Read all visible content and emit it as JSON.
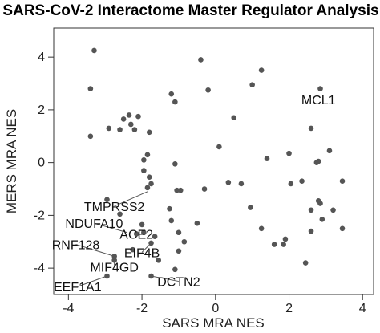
{
  "chart_data": {
    "type": "scatter",
    "title": "SARS-CoV-2 Interactome Master Regulator Analysis",
    "xlabel": "SARS MRA NES",
    "ylabel": "MERS MRA NES",
    "xlim": [
      -4.4,
      4.3
    ],
    "ylim": [
      -5.0,
      5.1
    ],
    "xticks": [
      -4,
      -2,
      0,
      2,
      4
    ],
    "yticks": [
      -4,
      -2,
      0,
      2,
      4
    ],
    "xtick_labels": [
      "-4",
      "-2",
      "0",
      "2",
      "4"
    ],
    "ytick_labels": [
      "-4",
      "-2",
      "0",
      "2",
      "4"
    ],
    "point_color": "#555555",
    "line_color": "#555555",
    "points": [
      {
        "x": -3.3,
        "y": 4.25
      },
      {
        "x": -3.4,
        "y": 2.8
      },
      {
        "x": -3.4,
        "y": 1.0
      },
      {
        "x": -2.9,
        "y": 1.3
      },
      {
        "x": -2.6,
        "y": 1.25
      },
      {
        "x": -2.5,
        "y": 1.65
      },
      {
        "x": -2.35,
        "y": 1.8
      },
      {
        "x": -2.3,
        "y": 1.45
      },
      {
        "x": -2.1,
        "y": 1.75
      },
      {
        "x": -2.2,
        "y": 1.25
      },
      {
        "x": -1.8,
        "y": 1.15
      },
      {
        "x": -1.2,
        "y": 2.6
      },
      {
        "x": -1.1,
        "y": 2.3
      },
      {
        "x": -0.4,
        "y": 3.9
      },
      {
        "x": -0.2,
        "y": 2.75
      },
      {
        "x": 0.1,
        "y": 0.6
      },
      {
        "x": 0.5,
        "y": 1.7
      },
      {
        "x": 1.0,
        "y": 2.95
      },
      {
        "x": 1.25,
        "y": 3.5
      },
      {
        "x": 2.85,
        "y": 2.8
      },
      {
        "x": 2.6,
        "y": 1.3
      },
      {
        "x": 2.8,
        "y": 0.05
      },
      {
        "x": 3.1,
        "y": 0.45
      },
      {
        "x": 2.75,
        "y": 0.0
      },
      {
        "x": 2.0,
        "y": 0.35
      },
      {
        "x": 1.4,
        "y": 0.15
      },
      {
        "x": 3.45,
        "y": -0.7
      },
      {
        "x": 3.2,
        "y": -1.8
      },
      {
        "x": 3.45,
        "y": -2.5
      },
      {
        "x": 2.8,
        "y": -1.45
      },
      {
        "x": 2.85,
        "y": -1.55
      },
      {
        "x": 2.9,
        "y": -2.15
      },
      {
        "x": 2.6,
        "y": -1.8
      },
      {
        "x": 2.6,
        "y": -2.6
      },
      {
        "x": 2.35,
        "y": -0.7
      },
      {
        "x": 2.05,
        "y": -0.8
      },
      {
        "x": 1.9,
        "y": -2.9
      },
      {
        "x": 1.85,
        "y": -3.1
      },
      {
        "x": 1.6,
        "y": -3.1
      },
      {
        "x": 1.25,
        "y": -2.5
      },
      {
        "x": 0.95,
        "y": -1.7
      },
      {
        "x": 0.7,
        "y": -0.8
      },
      {
        "x": 0.35,
        "y": -0.75
      },
      {
        "x": 2.45,
        "y": -3.8
      },
      {
        "x": -0.3,
        "y": -1.0
      },
      {
        "x": -0.5,
        "y": -2.3
      },
      {
        "x": -0.95,
        "y": -1.05
      },
      {
        "x": -1.05,
        "y": -1.05
      },
      {
        "x": -1.2,
        "y": -2.2
      },
      {
        "x": -1.0,
        "y": -2.65
      },
      {
        "x": -0.85,
        "y": -3.0
      },
      {
        "x": -1.0,
        "y": -3.35
      },
      {
        "x": -1.1,
        "y": -4.05
      },
      {
        "x": -1.65,
        "y": -2.8
      },
      {
        "x": -1.55,
        "y": -3.7
      },
      {
        "x": -1.75,
        "y": -4.3
      },
      {
        "x": -1.85,
        "y": -0.95
      },
      {
        "x": -1.95,
        "y": -0.3
      },
      {
        "x": -1.95,
        "y": 0.1
      },
      {
        "x": -1.85,
        "y": 0.3
      },
      {
        "x": -1.8,
        "y": -0.55
      },
      {
        "x": -1.75,
        "y": -0.8
      },
      {
        "x": -1.1,
        "y": -0.05
      },
      {
        "x": -1.25,
        "y": -1.75
      },
      {
        "x": -2.0,
        "y": -2.35
      },
      {
        "x": -1.95,
        "y": -2.65
      },
      {
        "x": -2.15,
        "y": -2.7
      },
      {
        "x": -1.75,
        "y": -3.05
      },
      {
        "x": -2.25,
        "y": -3.3
      },
      {
        "x": -2.75,
        "y": -3.55
      },
      {
        "x": -2.75,
        "y": -3.7
      },
      {
        "x": -2.95,
        "y": -4.3
      },
      {
        "x": -2.95,
        "y": -1.4
      },
      {
        "x": -2.6,
        "y": -1.95
      }
    ],
    "annotations": [
      {
        "label": "MCL1",
        "lx": 2.8,
        "ly": 2.4,
        "anchor": "middle",
        "has_line": false,
        "px": 2.85,
        "py": 2.8
      },
      {
        "label": "TMPRSS2",
        "lx": -2.75,
        "ly": -1.65,
        "anchor": "middle",
        "has_line": true,
        "px": -1.85,
        "py": -1.1
      },
      {
        "label": "NDUFA10",
        "lx": -3.3,
        "ly": -2.3,
        "anchor": "middle",
        "has_line": true,
        "px": -2.4,
        "py": -2.65
      },
      {
        "label": "ACE2",
        "lx": -2.15,
        "ly": -2.7,
        "anchor": "middle",
        "has_line": false,
        "px": -2.15,
        "py": -2.7
      },
      {
        "label": "RNF128",
        "lx": -3.8,
        "ly": -3.1,
        "anchor": "middle",
        "has_line": true,
        "px": -2.75,
        "py": -3.55
      },
      {
        "label": "EIF4B",
        "lx": -2.0,
        "ly": -3.4,
        "anchor": "middle",
        "has_line": true,
        "px": -1.75,
        "py": -3.05
      },
      {
        "label": "MIF4GD",
        "lx": -2.75,
        "ly": -3.95,
        "anchor": "middle",
        "has_line": true,
        "px": -2.75,
        "py": -3.7
      },
      {
        "label": "EEF1A1",
        "lx": -3.75,
        "ly": -4.7,
        "anchor": "middle",
        "has_line": true,
        "px": -2.95,
        "py": -4.3
      },
      {
        "label": "DCTN2",
        "lx": -1.0,
        "ly": -4.5,
        "anchor": "middle",
        "has_line": true,
        "px": -1.75,
        "py": -4.3
      }
    ]
  }
}
